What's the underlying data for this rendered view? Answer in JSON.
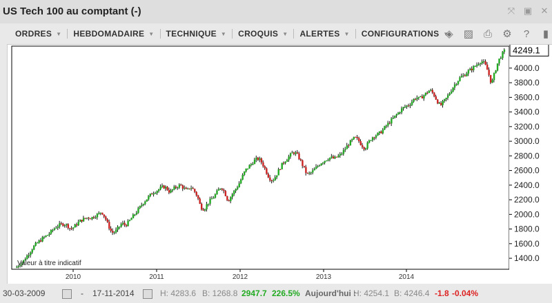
{
  "window": {
    "title": "US Tech 100 au comptant (-)"
  },
  "menu": [
    {
      "label": "ORDRES"
    },
    {
      "label": "HEBDOMADAIRE"
    },
    {
      "label": "TECHNIQUE"
    },
    {
      "label": "CROQUIS"
    },
    {
      "label": "ALERTES"
    },
    {
      "label": "CONFIGURATIONS"
    }
  ],
  "toolbar_icons": [
    "layers-icon",
    "image-icon",
    "print-icon",
    "gear-icon",
    "help-icon",
    "expand-icon"
  ],
  "chart_data": {
    "type": "candlestick",
    "title": "",
    "watermark": "Valeur à titre indicatif",
    "x_ticks": [
      "2010",
      "2011",
      "2012",
      "2013",
      "2014"
    ],
    "y_ticks": [
      1400,
      1600,
      1800,
      2000,
      2200,
      2400,
      2600,
      2800,
      3000,
      3200,
      3400,
      3600,
      3800,
      4000
    ],
    "ylim": [
      1250,
      4300
    ],
    "last_value": "4249.1",
    "up_color": "#22aa22",
    "down_color": "#cc2222",
    "series_close": [
      [
        0,
        1270
      ],
      [
        4,
        1320
      ],
      [
        8,
        1350
      ],
      [
        12,
        1420
      ],
      [
        16,
        1480
      ],
      [
        20,
        1550
      ],
      [
        24,
        1600
      ],
      [
        28,
        1640
      ],
      [
        32,
        1680
      ],
      [
        36,
        1710
      ],
      [
        40,
        1750
      ],
      [
        44,
        1800
      ],
      [
        48,
        1840
      ],
      [
        52,
        1860
      ],
      [
        56,
        1870
      ],
      [
        60,
        1850
      ],
      [
        64,
        1800
      ],
      [
        68,
        1830
      ],
      [
        72,
        1880
      ],
      [
        76,
        1920
      ],
      [
        80,
        1940
      ],
      [
        84,
        1960
      ],
      [
        88,
        1950
      ],
      [
        92,
        1980
      ],
      [
        96,
        2000
      ],
      [
        100,
        2040
      ],
      [
        104,
        1960
      ],
      [
        108,
        1850
      ],
      [
        112,
        1750
      ],
      [
        116,
        1760
      ],
      [
        120,
        1820
      ],
      [
        124,
        1880
      ],
      [
        128,
        1850
      ],
      [
        132,
        1900
      ],
      [
        136,
        1960
      ],
      [
        140,
        2020
      ],
      [
        144,
        2080
      ],
      [
        148,
        2150
      ],
      [
        152,
        2200
      ],
      [
        156,
        2250
      ],
      [
        160,
        2300
      ],
      [
        164,
        2320
      ],
      [
        168,
        2350
      ],
      [
        172,
        2380
      ],
      [
        176,
        2360
      ],
      [
        180,
        2300
      ],
      [
        184,
        2350
      ],
      [
        188,
        2380
      ],
      [
        192,
        2400
      ],
      [
        196,
        2360
      ],
      [
        200,
        2320
      ],
      [
        204,
        2380
      ],
      [
        208,
        2330
      ],
      [
        212,
        2250
      ],
      [
        216,
        2100
      ],
      [
        220,
        2070
      ],
      [
        224,
        2150
      ],
      [
        228,
        2200
      ],
      [
        232,
        2250
      ],
      [
        236,
        2320
      ],
      [
        240,
        2380
      ],
      [
        244,
        2300
      ],
      [
        248,
        2180
      ],
      [
        252,
        2260
      ],
      [
        256,
        2330
      ],
      [
        260,
        2400
      ],
      [
        264,
        2500
      ],
      [
        268,
        2600
      ],
      [
        272,
        2650
      ],
      [
        276,
        2700
      ],
      [
        280,
        2750
      ],
      [
        284,
        2760
      ],
      [
        288,
        2700
      ],
      [
        292,
        2600
      ],
      [
        296,
        2500
      ],
      [
        300,
        2460
      ],
      [
        304,
        2530
      ],
      [
        308,
        2620
      ],
      [
        312,
        2700
      ],
      [
        316,
        2750
      ],
      [
        320,
        2800
      ],
      [
        324,
        2850
      ],
      [
        328,
        2830
      ],
      [
        332,
        2750
      ],
      [
        336,
        2650
      ],
      [
        340,
        2550
      ],
      [
        344,
        2560
      ],
      [
        348,
        2600
      ],
      [
        352,
        2650
      ],
      [
        356,
        2700
      ],
      [
        360,
        2730
      ],
      [
        364,
        2760
      ],
      [
        368,
        2780
      ],
      [
        372,
        2760
      ],
      [
        376,
        2790
      ],
      [
        380,
        2820
      ],
      [
        384,
        2880
      ],
      [
        388,
        2950
      ],
      [
        392,
        3000
      ],
      [
        396,
        3050
      ],
      [
        400,
        3020
      ],
      [
        404,
        2950
      ],
      [
        408,
        2900
      ],
      [
        412,
        2980
      ],
      [
        416,
        3050
      ],
      [
        420,
        3080
      ],
      [
        424,
        3100
      ],
      [
        428,
        3140
      ],
      [
        432,
        3200
      ],
      [
        436,
        3250
      ],
      [
        440,
        3300
      ],
      [
        444,
        3350
      ],
      [
        448,
        3400
      ],
      [
        452,
        3450
      ],
      [
        456,
        3480
      ],
      [
        460,
        3500
      ],
      [
        464,
        3560
      ],
      [
        468,
        3600
      ],
      [
        472,
        3580
      ],
      [
        476,
        3620
      ],
      [
        480,
        3660
      ],
      [
        484,
        3700
      ],
      [
        488,
        3650
      ],
      [
        492,
        3560
      ],
      [
        496,
        3480
      ],
      [
        500,
        3540
      ],
      [
        504,
        3600
      ],
      [
        508,
        3680
      ],
      [
        512,
        3760
      ],
      [
        516,
        3820
      ],
      [
        520,
        3880
      ],
      [
        524,
        3900
      ],
      [
        528,
        3950
      ],
      [
        532,
        3980
      ],
      [
        536,
        4020
      ],
      [
        540,
        4060
      ],
      [
        544,
        4100
      ],
      [
        548,
        4060
      ],
      [
        552,
        3950
      ],
      [
        556,
        3780
      ],
      [
        560,
        3950
      ],
      [
        564,
        4100
      ],
      [
        568,
        4180
      ],
      [
        572,
        4249
      ]
    ]
  },
  "footer": {
    "start_date": "30-03-2009",
    "dash": "-",
    "end_date": "17-11-2014",
    "high": "H: 4283.6",
    "low": "B: 1268.8",
    "change": "2947.7",
    "change_pct": "226.5%",
    "today_label": "Aujourd'hui :",
    "today_high": "H: 4254.1",
    "today_low": "B: 4246.4",
    "today_change": "-1.8",
    "today_pct": "-0.04%"
  }
}
